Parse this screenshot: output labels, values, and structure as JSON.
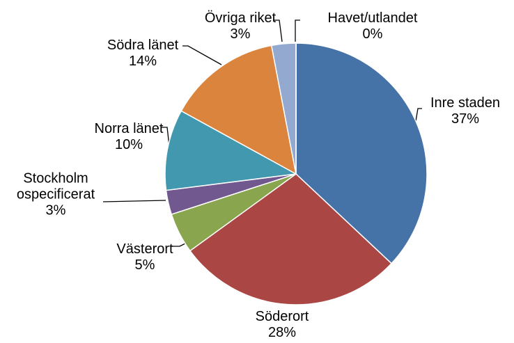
{
  "chart_data": {
    "type": "pie",
    "categories": [
      "Inre staden",
      "Söderort",
      "Västerort",
      "Stockholm ospecificerat",
      "Norra länet",
      "Södra länet",
      "Övriga riket",
      "Havet/utlandet"
    ],
    "values": [
      37,
      28,
      5,
      3,
      10,
      14,
      3,
      0
    ],
    "value_labels": [
      "37%",
      "28%",
      "5%",
      "3%",
      "10%",
      "14%",
      "3%",
      "0%"
    ],
    "colors": [
      "#4572a7",
      "#aa4643",
      "#89a54e",
      "#71588f",
      "#4198af",
      "#db843d",
      "#93a9cf",
      "#3d6fa8"
    ]
  }
}
